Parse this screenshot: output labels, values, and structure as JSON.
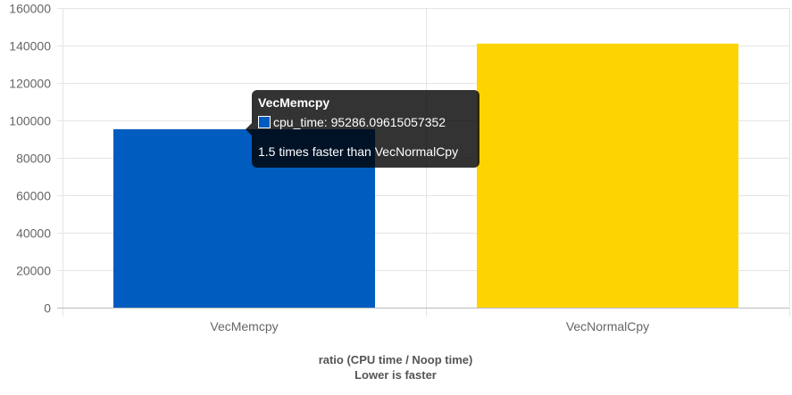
{
  "chart_data": {
    "type": "bar",
    "categories": [
      "VecMemcpy",
      "VecNormalCpy"
    ],
    "series": [
      {
        "name": "cpu_time",
        "values": [
          95286.09615057352,
          141000
        ]
      }
    ],
    "bar_colors": [
      "#005cbf",
      "#fdd400"
    ],
    "ylim": [
      0,
      160000
    ],
    "yticks": [
      0,
      20000,
      40000,
      60000,
      80000,
      100000,
      120000,
      140000,
      160000
    ],
    "xlabel_lines": [
      "ratio (CPU time / Noop time)",
      "Lower is faster"
    ],
    "grid": true,
    "grid_color": "#e5e5e5"
  },
  "tooltip": {
    "title": "VecMemcpy",
    "line": "cpu_time: 95286.09615057352",
    "footer": "1.5 times faster than VecNormalCpy"
  }
}
